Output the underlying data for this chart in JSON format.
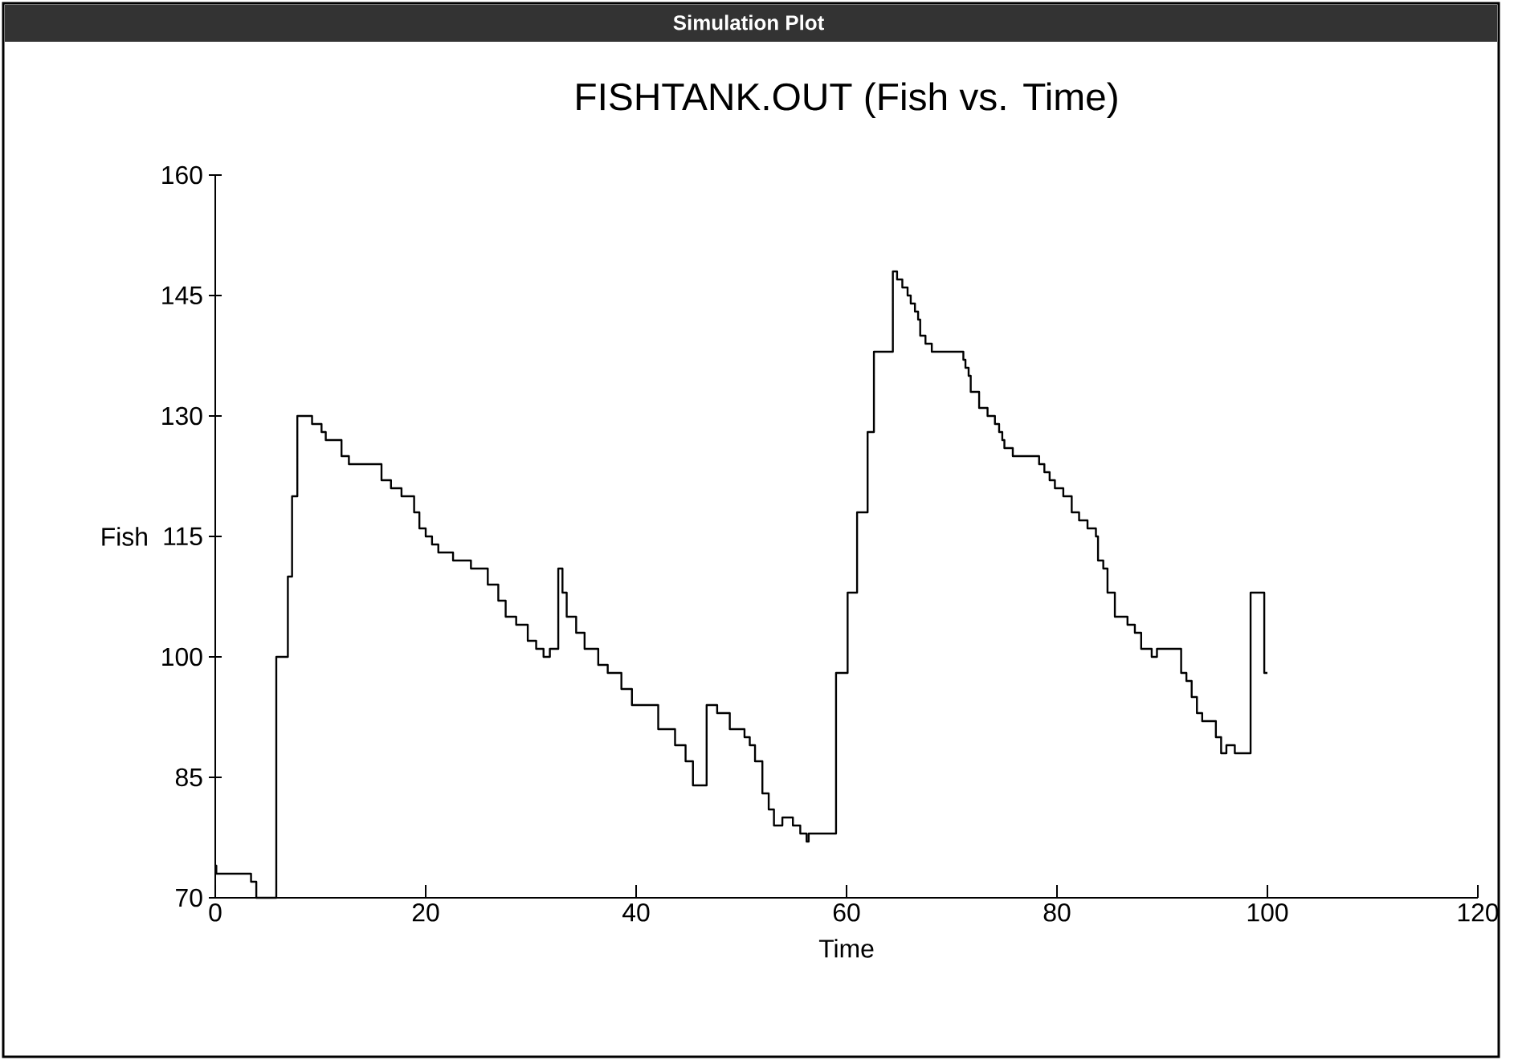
{
  "chart_data": {
    "type": "step",
    "title": "FISHTANK.OUT (Fish vs. Time)",
    "xlabel": "Time",
    "ylabel": "Fish",
    "annotations": [
      "Simulation Plot"
    ],
    "color": "#000000",
    "marker": "none",
    "x": [
      0,
      0.1,
      3.4,
      3.9,
      5.8,
      6.9,
      7.3,
      7.8,
      9.2,
      10.1,
      10.5,
      12,
      12.7,
      15.8,
      16.7,
      17.7,
      18.9,
      19.4,
      20,
      20.6,
      21.2,
      22.6,
      24.3,
      25.9,
      26.9,
      27.6,
      28.6,
      29.7,
      30.5,
      31.2,
      31.8,
      32.6,
      33.0,
      33.4,
      34.3,
      35.1,
      36.4,
      37.3,
      38.6,
      39.6,
      42.1,
      43.7,
      44.7,
      45.4,
      46.7,
      47.7,
      48.9,
      50.3,
      50.8,
      51.3,
      52.0,
      52.6,
      53.1,
      53.9,
      54.9,
      55.6,
      56.2,
      56.4,
      59.0,
      60.1,
      61.0,
      62.0,
      62.6,
      64.4,
      64.8,
      65.3,
      65.8,
      66.1,
      66.5,
      66.8,
      67.0,
      67.5,
      68.1,
      71.1,
      71.3,
      71.6,
      71.8,
      72.6,
      73.4,
      74.1,
      74.5,
      74.8,
      75.0,
      75.8,
      78.3,
      78.8,
      79.3,
      79.8,
      80.6,
      81.4,
      82.1,
      82.9,
      83.7,
      83.9,
      84.4,
      84.8,
      85.5,
      86.7,
      87.4,
      88.0,
      89.0,
      89.5,
      91.8,
      92.3,
      92.8,
      93.3,
      93.8,
      95.1,
      95.6,
      96.1,
      96.9,
      98.4,
      99.7,
      100
    ],
    "values": [
      74,
      73,
      72,
      70,
      100,
      110,
      120,
      130,
      129,
      128,
      127,
      125,
      124,
      122,
      121,
      120,
      118,
      116,
      115,
      114,
      113,
      112,
      111,
      109,
      107,
      105,
      104,
      102,
      101,
      100,
      101,
      111,
      108,
      105,
      103,
      101,
      99,
      98,
      96,
      94,
      91,
      89,
      87,
      84,
      94,
      93,
      91,
      90,
      89,
      87,
      83,
      81,
      79,
      80,
      79,
      78,
      77,
      78,
      98,
      108,
      118,
      128,
      138,
      148,
      147,
      146,
      145,
      144,
      143,
      142,
      140,
      139,
      138,
      137,
      136,
      135,
      133,
      131,
      130,
      129,
      128,
      127,
      126,
      125,
      124,
      123,
      122,
      121,
      120,
      118,
      117,
      116,
      115,
      112,
      111,
      108,
      105,
      104,
      103,
      101,
      100,
      101,
      98,
      97,
      95,
      93,
      92,
      90,
      88,
      89,
      88,
      108,
      98,
      98
    ],
    "xlim": [
      0,
      120
    ],
    "ylim": [
      70,
      160
    ],
    "xticks": [
      0,
      20,
      40,
      60,
      80,
      100,
      120
    ],
    "yticks": [
      70,
      85,
      100,
      115,
      130,
      145,
      160
    ]
  }
}
